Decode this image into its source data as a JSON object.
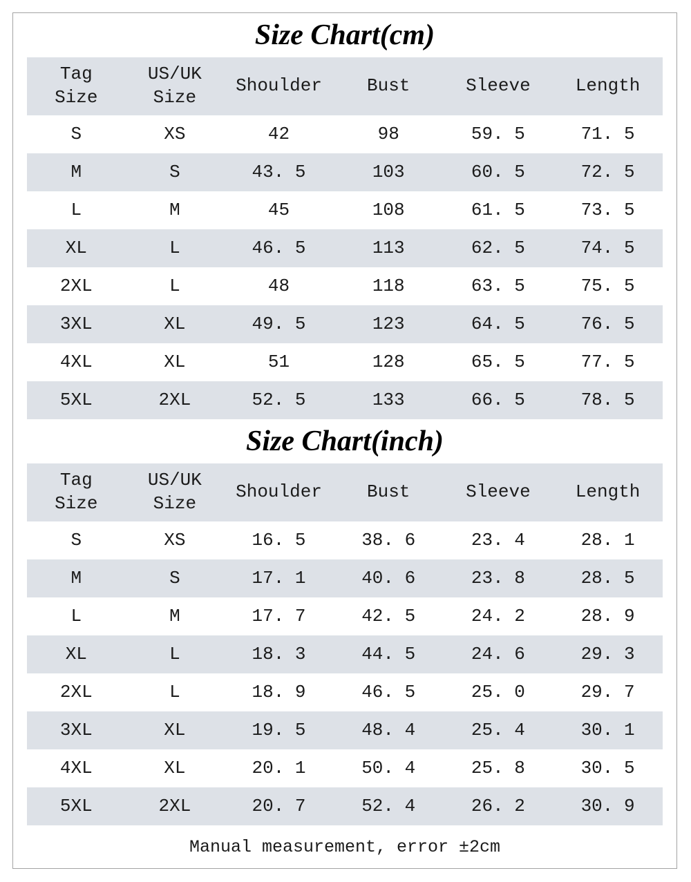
{
  "tables": [
    {
      "title": "Size Chart(cm)",
      "headers": [
        "Tag\nSize",
        "US/UK\nSize",
        "Shoulder",
        "Bust",
        "Sleeve",
        "Length"
      ],
      "rows": [
        [
          "S",
          "XS",
          "42",
          "98",
          "59. 5",
          "71. 5"
        ],
        [
          "M",
          "S",
          "43. 5",
          "103",
          "60. 5",
          "72. 5"
        ],
        [
          "L",
          "M",
          "45",
          "108",
          "61. 5",
          "73. 5"
        ],
        [
          "XL",
          "L",
          "46. 5",
          "113",
          "62. 5",
          "74. 5"
        ],
        [
          "2XL",
          "L",
          "48",
          "118",
          "63. 5",
          "75. 5"
        ],
        [
          "3XL",
          "XL",
          "49. 5",
          "123",
          "64. 5",
          "76. 5"
        ],
        [
          "4XL",
          "XL",
          "51",
          "128",
          "65. 5",
          "77. 5"
        ],
        [
          "5XL",
          "2XL",
          "52. 5",
          "133",
          "66. 5",
          "78. 5"
        ]
      ]
    },
    {
      "title": "Size Chart(inch)",
      "headers": [
        "Tag\nSize",
        "US/UK\nSize",
        "Shoulder",
        "Bust",
        "Sleeve",
        "Length"
      ],
      "rows": [
        [
          "S",
          "XS",
          "16. 5",
          "38. 6",
          "23. 4",
          "28. 1"
        ],
        [
          "M",
          "S",
          "17. 1",
          "40. 6",
          "23. 8",
          "28. 5"
        ],
        [
          "L",
          "M",
          "17. 7",
          "42. 5",
          "24. 2",
          "28. 9"
        ],
        [
          "XL",
          "L",
          "18. 3",
          "44. 5",
          "24. 6",
          "29. 3"
        ],
        [
          "2XL",
          "L",
          "18. 9",
          "46. 5",
          "25. 0",
          "29. 7"
        ],
        [
          "3XL",
          "XL",
          "19. 5",
          "48. 4",
          "25. 4",
          "30. 1"
        ],
        [
          "4XL",
          "XL",
          "20. 1",
          "50. 4",
          "25. 8",
          "30. 5"
        ],
        [
          "5XL",
          "2XL",
          "20. 7",
          "52. 4",
          "26. 2",
          "30. 9"
        ]
      ]
    }
  ],
  "footer": {
    "text": "Manual measurement, error ±2cm"
  },
  "colors": {
    "stripe": "#dde1e7",
    "border": "#a3a3a3",
    "text": "#1b1b1b"
  }
}
